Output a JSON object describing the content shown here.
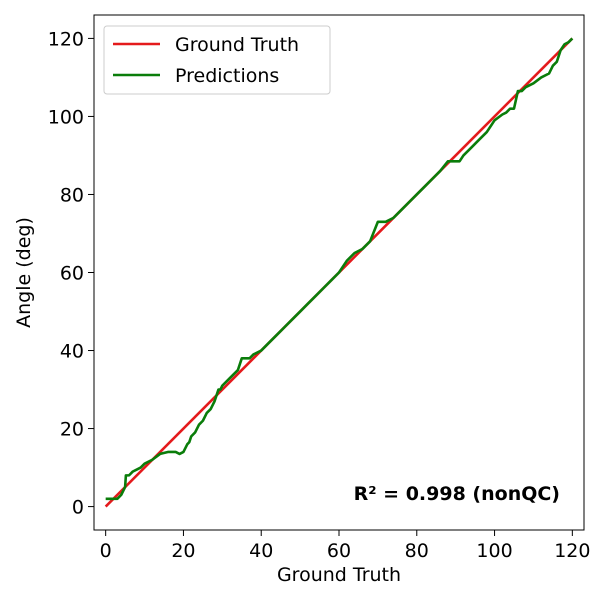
{
  "chart_data": {
    "type": "line",
    "title": "",
    "xlabel": "Ground Truth",
    "ylabel": "Angle (deg)",
    "xlim": [
      -3,
      123
    ],
    "ylim": [
      -6,
      126
    ],
    "xticks": [
      0,
      20,
      40,
      60,
      80,
      100,
      120
    ],
    "yticks": [
      0,
      20,
      40,
      60,
      80,
      100,
      120
    ],
    "grid": false,
    "legend_position": "top-left",
    "annotation": "R² = 0.998 (nonQC)",
    "series": [
      {
        "name": "Ground Truth",
        "color": "#e41a1c",
        "x": [
          0,
          120
        ],
        "y": [
          0,
          120
        ]
      },
      {
        "name": "Predictions",
        "color": "#0a7d0a",
        "x": [
          0,
          2,
          3,
          4,
          5,
          5.2,
          6,
          7,
          8,
          9,
          10,
          12,
          14,
          16,
          18,
          19,
          20,
          21,
          21.5,
          22,
          23,
          24,
          25,
          26,
          27,
          28,
          29,
          29.5,
          30,
          32,
          33,
          34,
          35,
          35.5,
          36,
          37,
          38,
          40,
          42,
          44,
          46,
          48,
          50,
          52,
          54,
          56,
          58,
          60,
          62,
          64,
          66,
          68,
          70,
          71,
          72,
          74,
          76,
          78,
          80,
          82,
          84,
          86,
          88,
          90,
          91,
          92,
          94,
          96,
          98,
          100,
          102,
          103,
          104,
          105,
          106,
          107,
          108,
          110,
          112,
          114,
          115,
          116,
          117,
          118,
          119,
          120
        ],
        "y": [
          2,
          2,
          2,
          3,
          5,
          8,
          8,
          9,
          9.5,
          10,
          11,
          12,
          13.5,
          14,
          14,
          13.5,
          14,
          16,
          16.5,
          18,
          19,
          21,
          22,
          24,
          25,
          27,
          30,
          30,
          31,
          33,
          34,
          35,
          38,
          38,
          38,
          38,
          39,
          40,
          42,
          44,
          46,
          48,
          50,
          52,
          54,
          56,
          58,
          60,
          63,
          65,
          66,
          68,
          73,
          73,
          73,
          74,
          76,
          78,
          80,
          82,
          84,
          86,
          88.5,
          88.5,
          88.5,
          90,
          92,
          94,
          96,
          99,
          100.5,
          101,
          102,
          102,
          106.5,
          106.5,
          107.5,
          108.5,
          110,
          111,
          113,
          114,
          117,
          118.5,
          119,
          120
        ]
      }
    ]
  }
}
